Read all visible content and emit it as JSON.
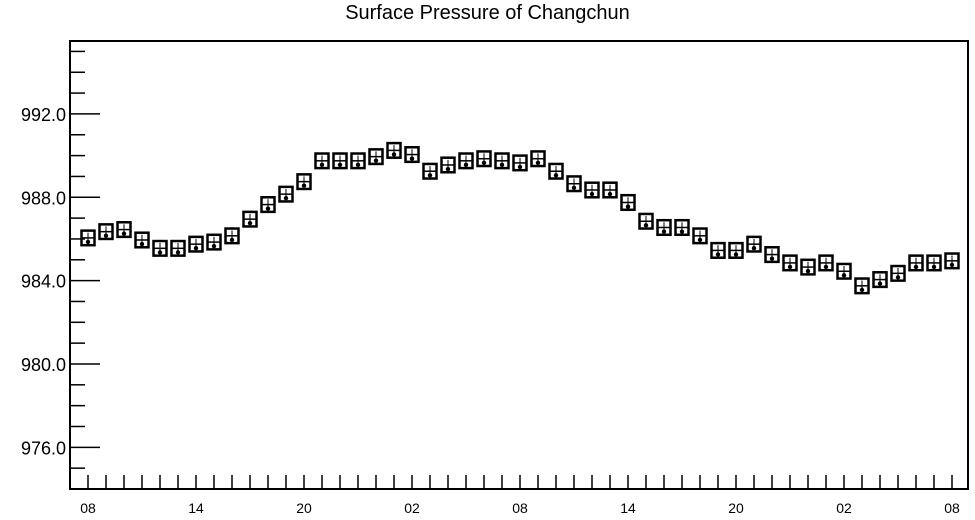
{
  "chart_data": {
    "type": "boxplot",
    "title": "Surface Pressure of Changchun",
    "xlabel": "",
    "ylabel": "",
    "ylim": [
      974.0,
      995.5
    ],
    "y_ticks": [
      "976.0",
      "980.0",
      "984.0",
      "988.0",
      "992.0"
    ],
    "y_tick_values": [
      976.0,
      980.0,
      984.0,
      988.0,
      992.0
    ],
    "x_ticks": [
      "08",
      "14",
      "20",
      "02",
      "08",
      "14",
      "20",
      "02",
      "08"
    ],
    "x_tick_index": [
      0,
      6,
      12,
      18,
      24,
      30,
      36,
      42,
      48
    ],
    "series": [
      {
        "values": [
          986.0,
          986.3,
          986.4,
          985.9,
          985.5,
          985.5,
          985.7,
          985.8,
          986.1,
          986.9,
          987.6,
          988.1,
          988.7,
          989.7,
          989.7,
          989.7,
          989.9,
          990.2,
          990.0,
          989.2,
          989.5,
          989.7,
          989.8,
          989.7,
          989.6,
          989.8,
          989.2,
          988.6,
          988.3,
          988.3,
          987.7,
          986.8,
          986.5,
          986.5,
          986.1,
          985.4,
          985.4,
          985.7,
          985.2,
          984.8,
          984.6,
          984.8,
          984.4,
          983.7,
          984.0,
          984.3,
          984.8,
          984.8,
          984.9
        ],
        "lower": [
          985.7,
          986.0,
          986.1,
          985.6,
          985.2,
          985.2,
          985.4,
          985.5,
          985.8,
          986.6,
          987.3,
          987.8,
          988.4,
          989.4,
          989.4,
          989.4,
          989.6,
          989.9,
          989.7,
          988.9,
          989.2,
          989.4,
          989.5,
          989.4,
          989.3,
          989.5,
          988.9,
          988.3,
          988.0,
          988.0,
          987.4,
          986.5,
          986.2,
          986.2,
          985.8,
          985.1,
          985.1,
          985.4,
          984.9,
          984.5,
          984.3,
          984.5,
          984.1,
          983.4,
          983.7,
          984.0,
          984.5,
          984.5,
          984.6
        ],
        "upper": [
          986.4,
          986.7,
          986.8,
          986.3,
          985.9,
          985.9,
          986.1,
          986.2,
          986.5,
          987.3,
          988.0,
          988.5,
          989.1,
          990.1,
          990.1,
          990.1,
          990.3,
          990.6,
          990.4,
          989.6,
          989.9,
          990.1,
          990.2,
          990.1,
          990.0,
          990.2,
          989.6,
          989.0,
          988.7,
          988.7,
          988.1,
          987.2,
          986.9,
          986.9,
          986.5,
          985.8,
          985.8,
          986.1,
          985.6,
          985.2,
          985.0,
          985.2,
          984.8,
          984.1,
          984.4,
          984.7,
          985.2,
          985.2,
          985.3
        ]
      }
    ],
    "grid": false,
    "legend": "none"
  }
}
